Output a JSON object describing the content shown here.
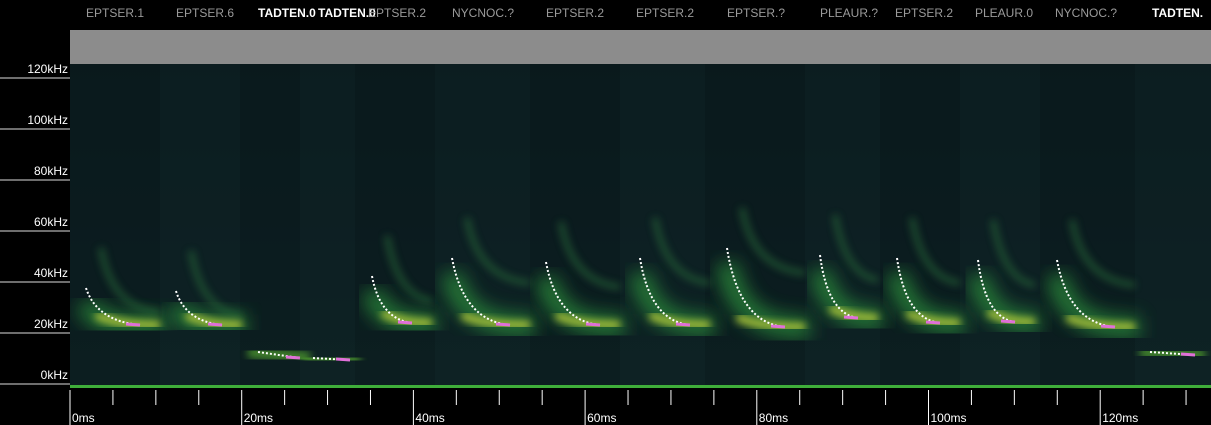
{
  "labels": [
    "EPTSER.1",
    "EPTSER.6",
    "TADTEN.0",
    "TADTEN.0",
    "EPTSER.2",
    "NYCNOC.?",
    "EPTSER.2",
    "EPTSER.2",
    "EPTSER.?",
    "PLEAUR.?",
    "EPTSER.2",
    "PLEAUR.0",
    "NYCNOC.?",
    "TADTEN."
  ],
  "frequency_axis": [
    "0kHz",
    "20kHz",
    "40kHz",
    "60kHz",
    "80kHz",
    "100kHz",
    "120kHz"
  ],
  "time_axis": [
    "0ms",
    "20ms",
    "40ms",
    "60ms",
    "80ms",
    "100ms",
    "120ms"
  ]
}
